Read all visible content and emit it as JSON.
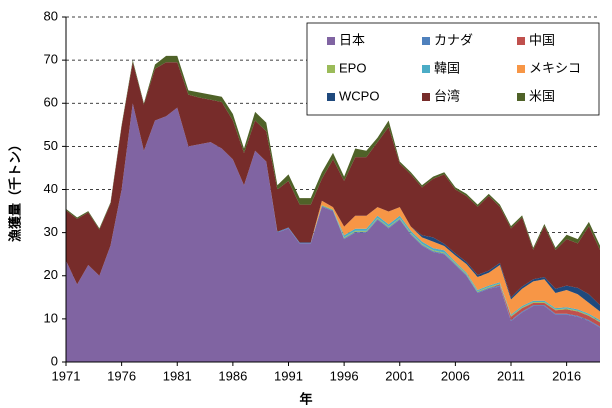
{
  "chart_data": {
    "type": "stacked_area",
    "x_label": "年",
    "y_label": "漁獲量（千トン）",
    "x": [
      1971,
      1972,
      1973,
      1974,
      1975,
      1976,
      1977,
      1978,
      1979,
      1980,
      1981,
      1982,
      1983,
      1984,
      1985,
      1986,
      1987,
      1988,
      1989,
      1990,
      1991,
      1992,
      1993,
      1994,
      1995,
      1996,
      1997,
      1998,
      1999,
      2000,
      2001,
      2002,
      2003,
      2004,
      2005,
      2006,
      2007,
      2008,
      2009,
      2010,
      2011,
      2012,
      2013,
      2014,
      2015,
      2016,
      2017,
      2018,
      2019
    ],
    "xlim": [
      1971,
      2019
    ],
    "xticks": [
      1971,
      1976,
      1981,
      1986,
      1991,
      1996,
      2001,
      2006,
      2011,
      2016
    ],
    "ylim": [
      0,
      80
    ],
    "yticks": [
      0,
      10,
      20,
      30,
      40,
      50,
      60,
      70,
      80
    ],
    "grid": true,
    "legend": "upper right",
    "series": [
      {
        "name": "日本",
        "color": "#8064a2",
        "values": [
          23.5,
          18,
          22.5,
          20,
          27,
          40,
          60,
          49,
          56,
          57,
          59,
          50,
          50.5,
          51,
          49.5,
          47,
          41,
          49,
          46.5,
          30,
          31,
          27.5,
          27.5,
          36,
          35,
          28.5,
          30,
          30,
          33,
          31,
          33,
          29.5,
          27,
          25.5,
          25,
          22.5,
          20,
          16,
          17,
          17.5,
          9.5,
          11.5,
          13,
          13,
          11,
          11,
          10.5,
          9.5,
          8
        ]
      },
      {
        "name": "カナダ",
        "color": "#4f81bd",
        "values": [
          0,
          0,
          0,
          0,
          0,
          0,
          0,
          0,
          0,
          0,
          0,
          0,
          0,
          0,
          0,
          0,
          0,
          0,
          0,
          0.2,
          0.2,
          0.2,
          0.2,
          0.2,
          0.2,
          0.2,
          0.2,
          0.2,
          0.2,
          0.2,
          0.2,
          0.2,
          0.2,
          0.2,
          0.2,
          0.2,
          0.2,
          0.2,
          0.2,
          0.2,
          0.2,
          0.2,
          0.2,
          0.2,
          0.2,
          0.2,
          0.2,
          0.2,
          0.2
        ]
      },
      {
        "name": "中国",
        "color": "#c0504d",
        "values": [
          0,
          0,
          0,
          0,
          0,
          0,
          0,
          0,
          0,
          0,
          0,
          0,
          0,
          0,
          0,
          0,
          0,
          0,
          0,
          0,
          0,
          0,
          0,
          0,
          0,
          0,
          0,
          0,
          0,
          0,
          0,
          0,
          0,
          0,
          0,
          0,
          0,
          0,
          0,
          0.3,
          0.8,
          0.8,
          0.5,
          0.5,
          0.8,
          1,
          1,
          1,
          1
        ]
      },
      {
        "name": "EPO",
        "color": "#9bbb59",
        "values": [
          0,
          0,
          0,
          0,
          0,
          0,
          0,
          0,
          0,
          0,
          0,
          0,
          0,
          0,
          0,
          0,
          0,
          0,
          0,
          0,
          0,
          0,
          0,
          0.2,
          0.2,
          0.2,
          0.2,
          0.2,
          0.2,
          0.2,
          0.2,
          0.2,
          0.2,
          0.2,
          0.2,
          0.2,
          0.2,
          0.2,
          0.2,
          0.2,
          0.2,
          0.2,
          0.2,
          0.2,
          0.2,
          0.2,
          0.2,
          0.2,
          0.2
        ]
      },
      {
        "name": "韓国",
        "color": "#4bacc6",
        "values": [
          0,
          0,
          0,
          0,
          0,
          0,
          0,
          0,
          0,
          0,
          0,
          0,
          0,
          0,
          0,
          0,
          0,
          0,
          0,
          0,
          0,
          0,
          0,
          0,
          0,
          0.5,
          0.5,
          0.5,
          0.5,
          0.5,
          0.5,
          0.5,
          0.5,
          0.5,
          0.5,
          0.3,
          0.3,
          0.3,
          0.3,
          0.3,
          0.3,
          0.3,
          0.3,
          0.3,
          0.3,
          0.3,
          0.3,
          0.3,
          0.3
        ]
      },
      {
        "name": "メキシコ",
        "color": "#f79646",
        "values": [
          0,
          0,
          0,
          0,
          0,
          0,
          0,
          0,
          0,
          0,
          0,
          0,
          0,
          0,
          0,
          0,
          0,
          0,
          0,
          0,
          0,
          0,
          0,
          1,
          0.5,
          2,
          3,
          3,
          2,
          3,
          2,
          1,
          1,
          1.5,
          1,
          1.5,
          2,
          3,
          3,
          4,
          3.5,
          4,
          4.5,
          5,
          3.5,
          4,
          3.5,
          2.5,
          2
        ]
      },
      {
        "name": "WCPO",
        "color": "#1f497d",
        "values": [
          0,
          0,
          0,
          0,
          0,
          0,
          0,
          0,
          0,
          0,
          0,
          0,
          0,
          0,
          0,
          0,
          0,
          0,
          0,
          0,
          0,
          0,
          0,
          0,
          0,
          0,
          0,
          0,
          0,
          0,
          0,
          0,
          0.5,
          1,
          0.5,
          0.5,
          0.5,
          0.5,
          0.5,
          0.5,
          0.5,
          0.5,
          0.5,
          0.5,
          1,
          1,
          1.5,
          2,
          1.5
        ]
      },
      {
        "name": "台湾",
        "color": "#772c2a",
        "values": [
          11.7,
          15.2,
          12.2,
          10.7,
          9.7,
          14.7,
          9.5,
          10.7,
          12,
          12.5,
          10.5,
          12,
          10.8,
          9.8,
          10.8,
          9,
          7.5,
          7,
          7,
          9.8,
          10.8,
          8.8,
          8.8,
          5.1,
          11.1,
          10.6,
          13.6,
          13.6,
          15.1,
          19.6,
          10.1,
          12.1,
          11.1,
          13.6,
          16.1,
          14.8,
          15.3,
          15.8,
          17.3,
          13,
          16,
          16,
          6.8,
          11.8,
          9,
          10.8,
          10.3,
          15.8,
          12.8
        ]
      },
      {
        "name": "米国",
        "color": "#4f6228",
        "values": [
          0.3,
          0.3,
          0.3,
          0.3,
          0.3,
          0.3,
          0.5,
          0.3,
          1,
          1.5,
          1.5,
          1,
          1.2,
          1.2,
          1.2,
          1.5,
          1,
          2,
          2,
          1,
          1.5,
          1.5,
          1.5,
          1.5,
          1.5,
          1,
          2,
          1.5,
          1,
          1.5,
          0.5,
          0.5,
          0.5,
          0.5,
          0.5,
          0.5,
          0.5,
          0.5,
          0.5,
          0.5,
          0.5,
          0.5,
          0.5,
          0.5,
          0.5,
          1,
          1,
          1,
          1
        ]
      }
    ]
  }
}
